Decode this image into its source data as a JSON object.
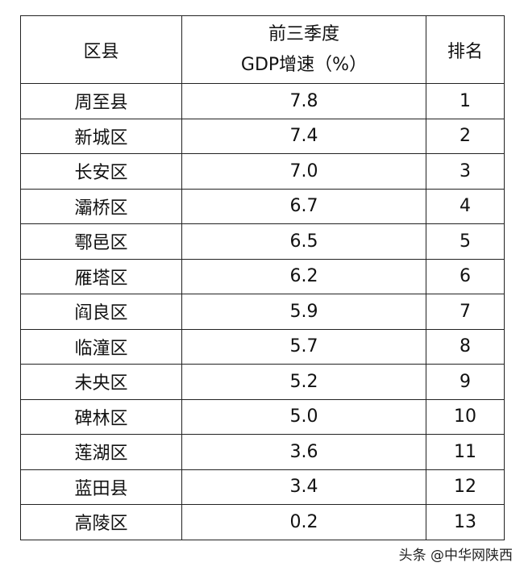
{
  "table": {
    "headers": {
      "district": "区县",
      "growth_line1": "前三季度",
      "growth_line2": "GDP增速（%）",
      "rank": "排名"
    },
    "rows": [
      {
        "district": "周至县",
        "growth": "7.8",
        "rank": "1"
      },
      {
        "district": "新城区",
        "growth": "7.4",
        "rank": "2"
      },
      {
        "district": "长安区",
        "growth": "7.0",
        "rank": "3"
      },
      {
        "district": "灞桥区",
        "growth": "6.7",
        "rank": "4"
      },
      {
        "district": "鄠邑区",
        "growth": "6.5",
        "rank": "5"
      },
      {
        "district": "雁塔区",
        "growth": "6.2",
        "rank": "6"
      },
      {
        "district": "阎良区",
        "growth": "5.9",
        "rank": "7"
      },
      {
        "district": "临潼区",
        "growth": "5.7",
        "rank": "8"
      },
      {
        "district": "未央区",
        "growth": "5.2",
        "rank": "9"
      },
      {
        "district": "碑林区",
        "growth": "5.0",
        "rank": "10"
      },
      {
        "district": "莲湖区",
        "growth": "3.6",
        "rank": "11"
      },
      {
        "district": "蓝田县",
        "growth": "3.4",
        "rank": "12"
      },
      {
        "district": "高陵区",
        "growth": "0.2",
        "rank": "13"
      }
    ]
  },
  "watermark": "头条 @中华网陕西"
}
